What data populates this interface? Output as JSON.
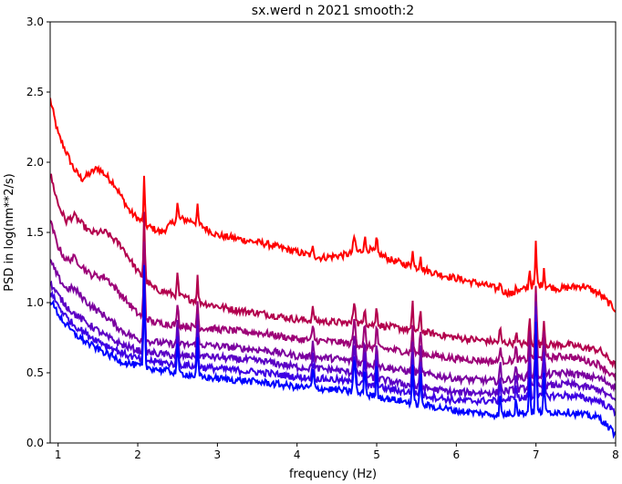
{
  "chart_data": {
    "type": "line",
    "title": "sx.werd n 2021 smooth:2",
    "xlabel": "frequency (Hz)",
    "ylabel": "PSD in log(nm**2/s)",
    "xlim": [
      0.9,
      8.0
    ],
    "ylim": [
      0.0,
      3.0
    ],
    "xticks": [
      1,
      2,
      3,
      4,
      5,
      6,
      7,
      8
    ],
    "yticks": [
      0.0,
      0.5,
      1.0,
      1.5,
      2.0,
      2.5,
      3.0
    ],
    "xtick_labels": [
      "1",
      "2",
      "3",
      "4",
      "5",
      "6",
      "7",
      "8"
    ],
    "ytick_labels": [
      "0.0",
      "0.5",
      "1.0",
      "1.5",
      "2.0",
      "2.5",
      "3.0"
    ],
    "grid": false,
    "legend": "none",
    "peaks": [
      {
        "f": 2.08,
        "h": 0.55,
        "w": 0.012
      },
      {
        "f": 2.5,
        "h": 0.18,
        "w": 0.012
      },
      {
        "f": 2.75,
        "h": 0.2,
        "w": 0.012
      },
      {
        "f": 4.2,
        "h": 0.1,
        "w": 0.015
      },
      {
        "f": 4.72,
        "h": 0.18,
        "w": 0.02
      },
      {
        "f": 4.85,
        "h": 0.15,
        "w": 0.015
      },
      {
        "f": 5.0,
        "h": 0.18,
        "w": 0.012
      },
      {
        "f": 5.45,
        "h": 0.22,
        "w": 0.012
      },
      {
        "f": 5.55,
        "h": 0.18,
        "w": 0.012
      },
      {
        "f": 6.55,
        "h": 0.12,
        "w": 0.012
      },
      {
        "f": 6.75,
        "h": 0.1,
        "w": 0.012
      },
      {
        "f": 6.92,
        "h": 0.22,
        "w": 0.012
      },
      {
        "f": 7.0,
        "h": 0.5,
        "w": 0.012
      },
      {
        "f": 7.1,
        "h": 0.22,
        "w": 0.012
      }
    ],
    "series": [
      {
        "color": "#ff0000",
        "x": [
          0.9,
          1.0,
          1.2,
          1.3,
          1.5,
          1.7,
          1.9,
          2.1,
          2.3,
          2.5,
          2.7,
          3.0,
          3.3,
          3.6,
          4.0,
          4.3,
          4.6,
          4.9,
          5.2,
          5.5,
          5.8,
          6.1,
          6.4,
          6.7,
          7.0,
          7.3,
          7.6,
          7.8,
          8.0
        ],
        "y": [
          2.45,
          2.2,
          1.95,
          1.88,
          1.96,
          1.85,
          1.65,
          1.55,
          1.5,
          1.6,
          1.58,
          1.48,
          1.45,
          1.42,
          1.36,
          1.32,
          1.34,
          1.38,
          1.3,
          1.25,
          1.2,
          1.16,
          1.12,
          1.06,
          1.13,
          1.1,
          1.12,
          1.06,
          0.95
        ]
      },
      {
        "color": "#b3004d",
        "x": [
          0.9,
          1.0,
          1.1,
          1.2,
          1.4,
          1.6,
          1.8,
          2.0,
          2.2,
          2.5,
          2.8,
          3.2,
          3.6,
          4.0,
          4.5,
          5.0,
          5.5,
          6.0,
          6.5,
          7.0,
          7.4,
          7.8,
          8.0
        ],
        "y": [
          1.92,
          1.7,
          1.58,
          1.62,
          1.5,
          1.5,
          1.4,
          1.22,
          1.1,
          1.05,
          1.0,
          0.95,
          0.92,
          0.88,
          0.86,
          0.84,
          0.8,
          0.75,
          0.72,
          0.7,
          0.7,
          0.66,
          0.55
        ]
      },
      {
        "color": "#9d0077",
        "x": [
          0.9,
          1.0,
          1.1,
          1.2,
          1.4,
          1.6,
          1.8,
          2.0,
          2.2,
          2.5,
          2.8,
          3.2,
          3.6,
          4.0,
          4.5,
          5.0,
          5.5,
          6.0,
          6.5,
          7.0,
          7.4,
          7.8,
          8.0
        ],
        "y": [
          1.58,
          1.4,
          1.3,
          1.32,
          1.2,
          1.18,
          1.05,
          0.92,
          0.86,
          0.84,
          0.82,
          0.8,
          0.78,
          0.74,
          0.72,
          0.68,
          0.64,
          0.6,
          0.58,
          0.6,
          0.62,
          0.56,
          0.46
        ]
      },
      {
        "color": "#7a00a0",
        "x": [
          0.9,
          1.0,
          1.1,
          1.2,
          1.4,
          1.6,
          1.8,
          2.0,
          2.2,
          2.5,
          2.8,
          3.2,
          3.6,
          4.0,
          4.5,
          5.0,
          5.5,
          6.0,
          6.5,
          7.0,
          7.4,
          7.8,
          8.0
        ],
        "y": [
          1.3,
          1.18,
          1.1,
          1.1,
          0.98,
          0.9,
          0.8,
          0.74,
          0.72,
          0.7,
          0.7,
          0.68,
          0.66,
          0.62,
          0.6,
          0.55,
          0.5,
          0.46,
          0.44,
          0.48,
          0.5,
          0.46,
          0.4
        ]
      },
      {
        "color": "#5a00c6",
        "x": [
          0.9,
          1.0,
          1.1,
          1.2,
          1.4,
          1.6,
          1.8,
          2.0,
          2.2,
          2.5,
          2.8,
          3.2,
          3.6,
          4.0,
          4.5,
          5.0,
          5.5,
          6.0,
          6.5,
          7.0,
          7.4,
          7.8,
          8.0
        ],
        "y": [
          1.14,
          1.05,
          0.98,
          0.92,
          0.84,
          0.76,
          0.7,
          0.66,
          0.64,
          0.62,
          0.62,
          0.6,
          0.58,
          0.54,
          0.52,
          0.46,
          0.4,
          0.36,
          0.36,
          0.4,
          0.42,
          0.38,
          0.3
        ]
      },
      {
        "color": "#3c00e4",
        "x": [
          0.9,
          1.0,
          1.1,
          1.2,
          1.4,
          1.6,
          1.8,
          2.0,
          2.2,
          2.5,
          2.8,
          3.2,
          3.6,
          4.0,
          4.5,
          5.0,
          5.5,
          6.0,
          6.5,
          7.0,
          7.4,
          7.8,
          8.0
        ],
        "y": [
          1.08,
          0.98,
          0.9,
          0.84,
          0.76,
          0.7,
          0.64,
          0.6,
          0.58,
          0.56,
          0.54,
          0.52,
          0.5,
          0.47,
          0.45,
          0.4,
          0.35,
          0.3,
          0.3,
          0.33,
          0.34,
          0.3,
          0.22
        ]
      },
      {
        "color": "#0000ff",
        "x": [
          0.9,
          1.0,
          1.1,
          1.2,
          1.4,
          1.6,
          1.8,
          2.0,
          2.2,
          2.5,
          2.8,
          3.2,
          3.6,
          4.0,
          4.5,
          5.0,
          5.5,
          6.0,
          6.5,
          7.0,
          7.4,
          7.8,
          8.0
        ],
        "y": [
          1.02,
          0.92,
          0.84,
          0.78,
          0.7,
          0.64,
          0.58,
          0.55,
          0.53,
          0.5,
          0.47,
          0.45,
          0.43,
          0.4,
          0.38,
          0.33,
          0.28,
          0.23,
          0.2,
          0.22,
          0.22,
          0.18,
          0.06
        ]
      }
    ]
  }
}
